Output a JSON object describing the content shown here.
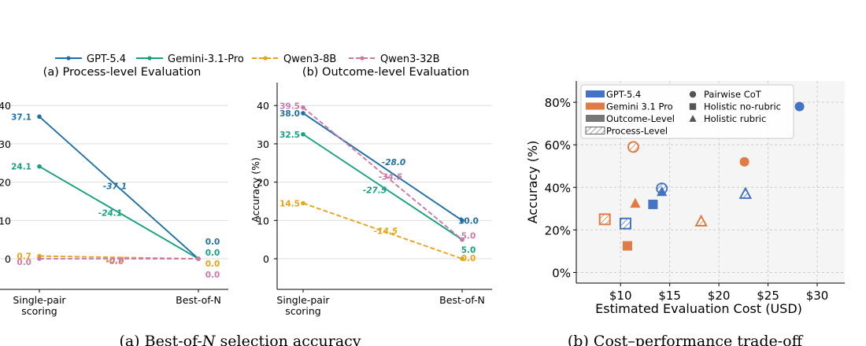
{
  "chart_data": [
    {
      "type": "line",
      "subplot": "a",
      "title": "(a) Process-level Evaluation",
      "xlabel": "",
      "ylabel": "",
      "categories": [
        "Single-pair\nscoring",
        "Best-of-N"
      ],
      "ylim": [
        -8,
        46
      ],
      "yticks": [
        "0",
        "10",
        "20",
        "30",
        "40"
      ],
      "grid": "horizontal",
      "series": [
        {
          "name": "GPT-5.4",
          "color": "#1f6fa6",
          "dash": false,
          "marker": "circle",
          "values": [
            37.1,
            0.0
          ],
          "start_label": "37.1",
          "end_label": "0.0",
          "delta_label": "-37.1"
        },
        {
          "name": "Gemini-3.1-Pro",
          "color": "#16a082",
          "dash": false,
          "marker": "circle",
          "values": [
            24.1,
            0.0
          ],
          "start_label": "24.1",
          "end_label": "0.0",
          "delta_label": "-24.1"
        },
        {
          "name": "Qwen3-8B",
          "color": "#e8a317",
          "dash": true,
          "marker": "circle",
          "values": [
            0.7,
            0.0
          ],
          "start_label": "0.7",
          "end_label": "0.0",
          "delta_label": "-0.7"
        },
        {
          "name": "Qwen3-32B",
          "color": "#cc79a7",
          "dash": true,
          "marker": "circle",
          "values": [
            0.0,
            0.0
          ],
          "start_label": "0.0",
          "end_label": "0.0",
          "delta_label": "-0.0"
        }
      ]
    },
    {
      "type": "line",
      "subplot": "b",
      "title": "(b) Outcome-level Evaluation",
      "xlabel": "",
      "ylabel": "Accuracy (%)",
      "categories": [
        "Single-pair\nscoring",
        "Best-of-N"
      ],
      "ylim": [
        -8,
        46
      ],
      "yticks": [
        "0",
        "10",
        "20",
        "30",
        "40"
      ],
      "grid": "horizontal",
      "series": [
        {
          "name": "GPT-5.4",
          "color": "#1f6fa6",
          "dash": false,
          "marker": "circle",
          "values": [
            38.0,
            10.0
          ],
          "start_label": "38.0",
          "end_label": "10.0",
          "delta_label": "-28.0"
        },
        {
          "name": "Gemini-3.1-Pro",
          "color": "#16a082",
          "dash": false,
          "marker": "circle",
          "values": [
            32.5,
            5.0
          ],
          "start_label": "32.5",
          "end_label": "5.0",
          "delta_label": "-27.5"
        },
        {
          "name": "Qwen3-8B",
          "color": "#e8a317",
          "dash": true,
          "marker": "circle",
          "values": [
            14.5,
            0.0
          ],
          "start_label": "14.5",
          "end_label": "0.0",
          "delta_label": "-14.5"
        },
        {
          "name": "Qwen3-32B",
          "color": "#cc79a7",
          "dash": true,
          "marker": "circle",
          "values": [
            39.5,
            5.0
          ],
          "start_label": "39.5",
          "end_label": "5.0",
          "delta_label": "-34.5"
        }
      ]
    },
    {
      "type": "scatter",
      "subplot": "c",
      "title": "",
      "xlabel": "Estimated Evaluation Cost (USD)",
      "ylabel": "Accuracy (%)",
      "xlim": [
        5.5,
        32.8
      ],
      "ylim": [
        -5,
        90
      ],
      "xticks": [
        10,
        15,
        20,
        25,
        30
      ],
      "xtick_labels": [
        "$10",
        "$15",
        "$20",
        "$25",
        "$30"
      ],
      "yticks": [
        0,
        20,
        40,
        60,
        80
      ],
      "ytick_labels": [
        "0%",
        "20%",
        "40%",
        "60%",
        "80%"
      ],
      "grid": "dashed",
      "background": "#f5f5f5",
      "colors": {
        "GPT-5.4": "#4472c4",
        "Gemini 3.1 Pro": "#e07b45"
      },
      "points": [
        {
          "model": "GPT-5.4",
          "method": "Pairwise CoT",
          "level": "Outcome-Level",
          "x": 28.2,
          "y": 78
        },
        {
          "model": "GPT-5.4",
          "method": "Pairwise CoT",
          "level": "Process-Level",
          "x": 14.2,
          "y": 39.5
        },
        {
          "model": "GPT-5.4",
          "method": "Holistic no-rubric",
          "level": "Outcome-Level",
          "x": 13.3,
          "y": 32
        },
        {
          "model": "GPT-5.4",
          "method": "Holistic no-rubric",
          "level": "Process-Level",
          "x": 10.5,
          "y": 23
        },
        {
          "model": "GPT-5.4",
          "method": "Holistic rubric",
          "level": "Outcome-Level",
          "x": 14.2,
          "y": 38
        },
        {
          "model": "GPT-5.4",
          "method": "Holistic rubric",
          "level": "Process-Level",
          "x": 22.7,
          "y": 37
        },
        {
          "model": "Gemini 3.1 Pro",
          "method": "Pairwise CoT",
          "level": "Outcome-Level",
          "x": 22.6,
          "y": 52
        },
        {
          "model": "Gemini 3.1 Pro",
          "method": "Pairwise CoT",
          "level": "Process-Level",
          "x": 11.3,
          "y": 59
        },
        {
          "model": "Gemini 3.1 Pro",
          "method": "Holistic no-rubric",
          "level": "Outcome-Level",
          "x": 10.7,
          "y": 12.5
        },
        {
          "model": "Gemini 3.1 Pro",
          "method": "Holistic no-rubric",
          "level": "Process-Level",
          "x": 8.4,
          "y": 25
        },
        {
          "model": "Gemini 3.1 Pro",
          "method": "Holistic rubric",
          "level": "Outcome-Level",
          "x": 11.5,
          "y": 32.5
        },
        {
          "model": "Gemini 3.1 Pro",
          "method": "Holistic rubric",
          "level": "Process-Level",
          "x": 18.2,
          "y": 24
        }
      ],
      "legend": {
        "placement": "top-left",
        "models": [
          "GPT-5.4",
          "Gemini 3.1 Pro"
        ],
        "levels": [
          "Outcome-Level",
          "Process-Level"
        ],
        "methods": [
          {
            "label": "Pairwise CoT",
            "shape": "circle"
          },
          {
            "label": "Holistic no-rubric",
            "shape": "square"
          },
          {
            "label": "Holistic rubric",
            "shape": "triangle"
          }
        ]
      }
    }
  ],
  "legend_top": [
    {
      "label": "GPT-5.4",
      "color": "#1f6fa6",
      "dash": false
    },
    {
      "label": "Gemini-3.1-Pro",
      "color": "#16a082",
      "dash": false
    },
    {
      "label": "Qwen3-8B",
      "color": "#e8a317",
      "dash": true
    },
    {
      "label": "Qwen3-32B",
      "color": "#cc79a7",
      "dash": true
    }
  ],
  "captions": {
    "left_prefix": "(a) Best-of-",
    "left_var": "N",
    "left_suffix": " selection accuracy",
    "right": "(b) Cost–performance trade-off"
  }
}
